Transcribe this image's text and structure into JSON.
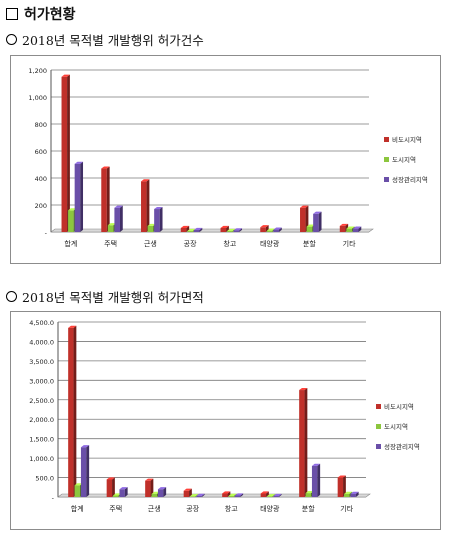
{
  "section_title": "허가현황",
  "chart1_title": "2018년 목적별 개발행위 허가건수",
  "chart2_title": "2018년 목적별 개발행위 허가면적",
  "colors": {
    "series1": "#c0302a",
    "series2": "#8cc63e",
    "series3": "#6a4fa8"
  },
  "chart_data": [
    {
      "type": "bar",
      "title": "2018년 목적별 개발행위 허가건수",
      "categories": [
        "합계",
        "주택",
        "근생",
        "공장",
        "창고",
        "태양광",
        "분할",
        "기타"
      ],
      "series": [
        {
          "name": "비도시지역",
          "values": [
            1150,
            470,
            375,
            30,
            30,
            35,
            180,
            45
          ]
        },
        {
          "name": "도시지역",
          "values": [
            160,
            50,
            45,
            8,
            8,
            10,
            40,
            25
          ]
        },
        {
          "name": "성장관리지역",
          "values": [
            505,
            180,
            170,
            15,
            12,
            18,
            135,
            25
          ]
        }
      ],
      "yticks": [
        "-",
        "200",
        "400",
        "600",
        "800",
        "1,000",
        "1,200"
      ],
      "ylim": [
        0,
        1200
      ],
      "legend": "right",
      "grid": true
    },
    {
      "type": "bar",
      "title": "2018년 목적별 개발행위 허가면적",
      "categories": [
        "합계",
        "주택",
        "근생",
        "공장",
        "창고",
        "태양광",
        "분할",
        "기타"
      ],
      "series": [
        {
          "name": "비도시지역",
          "values": [
            4350,
            450,
            420,
            160,
            90,
            90,
            2750,
            500
          ]
        },
        {
          "name": "도시지역",
          "values": [
            300,
            40,
            80,
            20,
            30,
            20,
            100,
            80
          ]
        },
        {
          "name": "성장관리지역",
          "values": [
            1280,
            200,
            200,
            30,
            40,
            25,
            800,
            80
          ]
        }
      ],
      "yticks": [
        "-",
        "500.0",
        "1,000.0",
        "1,500.0",
        "2,000.0",
        "2,500.0",
        "3,000.0",
        "3,500.0",
        "4,000.0",
        "4,500.0"
      ],
      "ylim": [
        0,
        4500
      ],
      "legend": "right",
      "grid": true
    }
  ]
}
